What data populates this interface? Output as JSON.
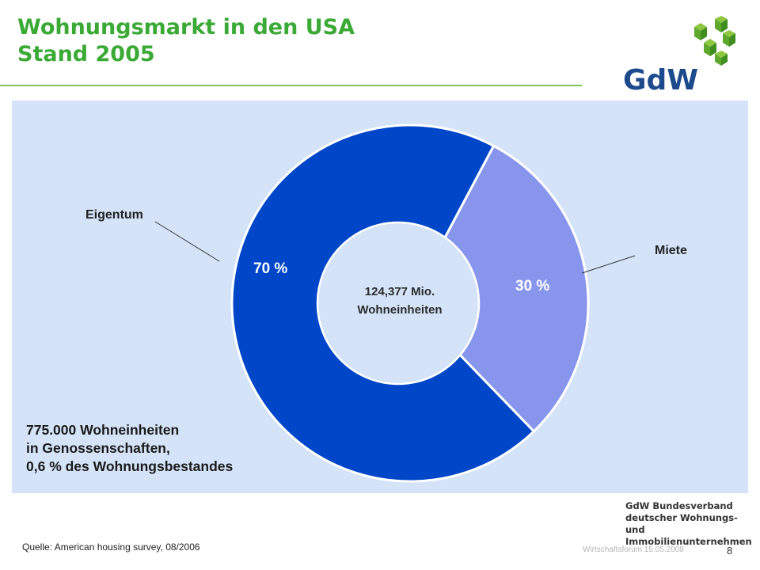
{
  "header": {
    "title_line1": "Wohnungsmarkt in den USA",
    "title_line2": "Stand 2005",
    "logo_text": "GdW"
  },
  "chart_data": {
    "type": "pie",
    "style": "donut",
    "title": "Wohnungsmarkt in den USA Stand 2005",
    "center_label": [
      "124,377 Mio.",
      "Wohneinheiten"
    ],
    "categories": [
      "Eigentum",
      "Miete"
    ],
    "values": [
      70,
      30
    ],
    "value_labels": [
      "70 %",
      "30 %"
    ],
    "colors": [
      "#0046c9",
      "#8796ec"
    ],
    "legend": "none",
    "annotation": [
      "775.000 Wohneinheiten",
      "in Genossenschaften,",
      "0,6 % des Wohnungsbestandes"
    ]
  },
  "org": {
    "line1": "GdW Bundesverband",
    "line2": "deutscher Wohnungs- und",
    "line3": "Immobilienunternehmen"
  },
  "footer": {
    "source": "Quelle:  American housing survey, 08/2006",
    "event": "Wirtschaftsforum 15.05.2008",
    "page": "8"
  }
}
